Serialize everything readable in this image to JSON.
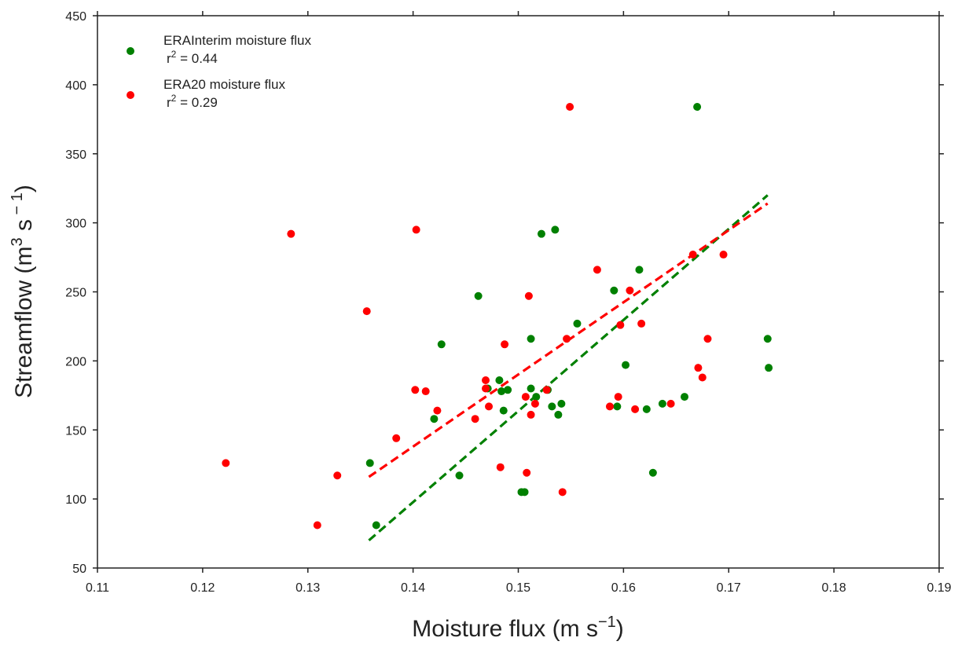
{
  "chart_data": {
    "type": "scatter",
    "xlabel_main": "Moisture flux (m s",
    "xlabel_sup": "−1",
    "xlabel_close": ")",
    "ylabel_main": "Streamflow (m",
    "ylabel_sup": "3",
    "ylabel_mid": " s",
    "ylabel_sup2": " − 1",
    "ylabel_close": ")",
    "xlim": [
      0.11,
      0.19
    ],
    "ylim": [
      50,
      450
    ],
    "xticks": [
      0.11,
      0.12,
      0.13,
      0.14,
      0.15,
      0.16,
      0.17,
      0.18,
      0.19
    ],
    "xtick_labels": [
      "0.11",
      "0.12",
      "0.13",
      "0.14",
      "0.15",
      "0.16",
      "0.17",
      "0.18",
      "0.19"
    ],
    "yticks": [
      50,
      100,
      150,
      200,
      250,
      300,
      350,
      400,
      450
    ],
    "ytick_labels": [
      "50",
      "100",
      "150",
      "200",
      "250",
      "300",
      "350",
      "400",
      "450"
    ],
    "grid": false,
    "legend_position": "top-left",
    "series": [
      {
        "name": "ERAInterim moisture flux",
        "r2_prefix": "r",
        "r2_sup": "2",
        "r2_value": " = 0.44",
        "color": "#008000",
        "points": [
          [
            0.1359,
            126
          ],
          [
            0.1365,
            81
          ],
          [
            0.142,
            158
          ],
          [
            0.1427,
            212
          ],
          [
            0.1444,
            117
          ],
          [
            0.1462,
            247
          ],
          [
            0.1471,
            180
          ],
          [
            0.1482,
            186
          ],
          [
            0.1484,
            178
          ],
          [
            0.1486,
            164
          ],
          [
            0.149,
            179
          ],
          [
            0.1503,
            105
          ],
          [
            0.1506,
            105
          ],
          [
            0.1512,
            216
          ],
          [
            0.1512,
            180
          ],
          [
            0.1517,
            174
          ],
          [
            0.1522,
            292
          ],
          [
            0.1528,
            179
          ],
          [
            0.1532,
            167
          ],
          [
            0.1535,
            295
          ],
          [
            0.1538,
            161
          ],
          [
            0.1541,
            169
          ],
          [
            0.1556,
            227
          ],
          [
            0.1591,
            251
          ],
          [
            0.1594,
            167
          ],
          [
            0.1602,
            197
          ],
          [
            0.1615,
            266
          ],
          [
            0.1622,
            165
          ],
          [
            0.1628,
            119
          ],
          [
            0.1637,
            169
          ],
          [
            0.1658,
            174
          ],
          [
            0.167,
            384
          ],
          [
            0.1737,
            216
          ],
          [
            0.1738,
            195
          ]
        ],
        "fit": [
          [
            0.1358,
            70
          ],
          [
            0.1737,
            320
          ]
        ]
      },
      {
        "name": "ERA20 moisture flux",
        "r2_prefix": "r",
        "r2_sup": "2",
        "r2_value": " = 0.29",
        "color": "#ff0000",
        "points": [
          [
            0.1222,
            126
          ],
          [
            0.1284,
            292
          ],
          [
            0.1309,
            81
          ],
          [
            0.1328,
            117
          ],
          [
            0.1356,
            236
          ],
          [
            0.1384,
            144
          ],
          [
            0.1402,
            179
          ],
          [
            0.1403,
            295
          ],
          [
            0.1412,
            178
          ],
          [
            0.1423,
            164
          ],
          [
            0.1459,
            158
          ],
          [
            0.1469,
            186
          ],
          [
            0.1469,
            180
          ],
          [
            0.1472,
            167
          ],
          [
            0.1483,
            123
          ],
          [
            0.1487,
            212
          ],
          [
            0.1507,
            174
          ],
          [
            0.1508,
            119
          ],
          [
            0.151,
            247
          ],
          [
            0.1512,
            161
          ],
          [
            0.1516,
            169
          ],
          [
            0.1527,
            179
          ],
          [
            0.1542,
            105
          ],
          [
            0.1546,
            216
          ],
          [
            0.1549,
            384
          ],
          [
            0.1575,
            266
          ],
          [
            0.1587,
            167
          ],
          [
            0.1595,
            174
          ],
          [
            0.1597,
            226
          ],
          [
            0.1606,
            251
          ],
          [
            0.1611,
            165
          ],
          [
            0.1617,
            227
          ],
          [
            0.1645,
            169
          ],
          [
            0.1666,
            277
          ],
          [
            0.1671,
            195
          ],
          [
            0.1675,
            188
          ],
          [
            0.168,
            216
          ],
          [
            0.1695,
            277
          ]
        ],
        "fit": [
          [
            0.1358,
            116
          ],
          [
            0.1737,
            314
          ]
        ]
      }
    ]
  }
}
